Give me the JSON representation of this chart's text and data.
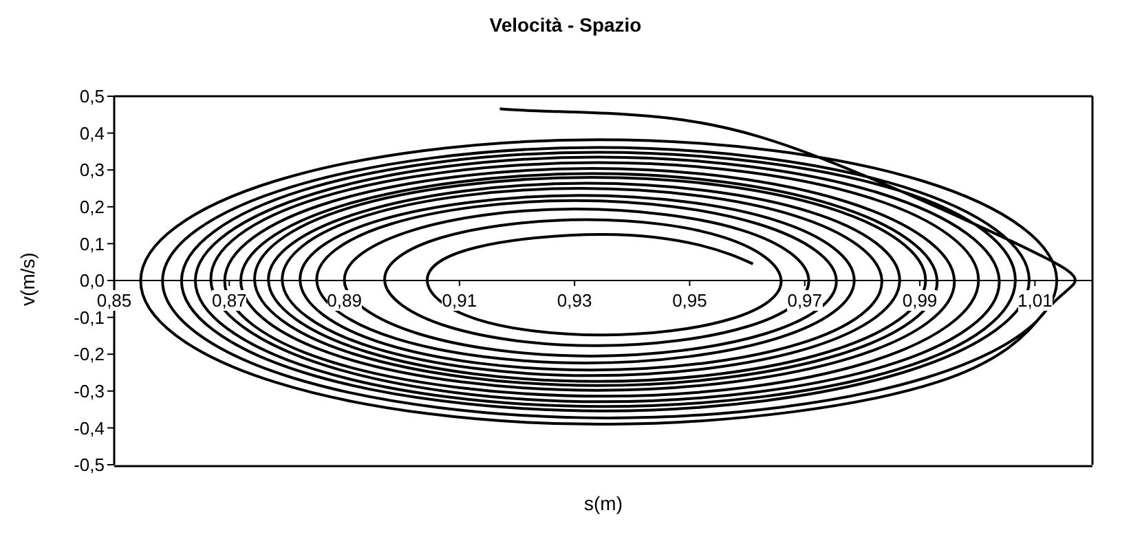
{
  "chart_data": {
    "type": "line",
    "title": "Velocità - Spazio",
    "xlabel": "s(m)",
    "ylabel": "v(m/s)",
    "color": "#000000",
    "marker": "none",
    "line_style": "solid",
    "xlim": [
      0.85,
      1.02
    ],
    "xticks": [
      {
        "value": 0.85,
        "label": "0,85"
      },
      {
        "value": 0.87,
        "label": "0,87"
      },
      {
        "value": 0.89,
        "label": "0,89"
      },
      {
        "value": 0.91,
        "label": "0,91"
      },
      {
        "value": 0.93,
        "label": "0,93"
      },
      {
        "value": 0.95,
        "label": "0,95"
      },
      {
        "value": 0.97,
        "label": "0,97"
      },
      {
        "value": 0.99,
        "label": "0,99"
      },
      {
        "value": 1.01,
        "label": "1,01"
      }
    ],
    "ylim": [
      -0.5,
      0.5
    ],
    "yticks": [
      {
        "value": 0.5,
        "label": "0,5"
      },
      {
        "value": 0.4,
        "label": "0,4"
      },
      {
        "value": 0.3,
        "label": "0,3"
      },
      {
        "value": 0.2,
        "label": "0,2"
      },
      {
        "value": 0.1,
        "label": "0,1"
      },
      {
        "value": 0,
        "label": "0,0"
      },
      {
        "value": -0.1,
        "label": "-0,1"
      },
      {
        "value": -0.2,
        "label": "-0,2"
      },
      {
        "value": -0.3,
        "label": "-0,3"
      },
      {
        "value": -0.4,
        "label": "-0,4"
      },
      {
        "value": -0.5,
        "label": "-0,5"
      }
    ],
    "x": [
      0.917,
      0.926,
      0.95,
      0.974,
      0.998,
      1.012,
      1.017,
      1.012,
      0.993,
      0.936,
      0.878,
      0.8546,
      0.878,
      0.934,
      0.9905,
      1.0138,
      0.991,
      0.936,
      0.881,
      0.8584,
      0.881,
      0.934,
      0.987,
      1.009,
      0.987,
      0.935,
      0.883,
      0.8617,
      0.883,
      0.934,
      0.986,
      1.0066,
      0.986,
      0.935,
      0.885,
      0.8641,
      0.885,
      0.934,
      0.983,
      1.0038,
      0.984,
      0.935,
      0.887,
      0.8668,
      0.886,
      0.934,
      0.981,
      1.0002,
      0.981,
      0.935,
      0.888,
      0.8692,
      0.888,
      0.933,
      0.977,
      0.996,
      0.978,
      0.934,
      0.89,
      0.872,
      0.89,
      0.933,
      0.975,
      0.993,
      0.976,
      0.934,
      0.892,
      0.8744,
      0.891,
      0.933,
      0.974,
      0.991,
      0.974,
      0.934,
      0.894,
      0.8768,
      0.893,
      0.932,
      0.971,
      0.9865,
      0.971,
      0.933,
      0.895,
      0.8792,
      0.894,
      0.931,
      0.968,
      0.9834,
      0.969,
      0.933,
      0.897,
      0.8823,
      0.896,
      0.931,
      0.965,
      0.9786,
      0.965,
      0.932,
      0.899,
      0.8852,
      0.898,
      0.93,
      0.962,
      0.9755,
      0.963,
      0.933,
      0.903,
      0.89,
      0.902,
      0.93,
      0.959,
      0.9707,
      0.96,
      0.934,
      0.908,
      0.897,
      0.907,
      0.932,
      0.956,
      0.9659,
      0.957,
      0.935,
      0.913,
      0.9044,
      0.913,
      0.935,
      0.952,
      0.961
    ],
    "values": [
      0.466,
      0.459,
      0.433,
      0.325,
      0.164,
      0.06,
      0,
      -0.08,
      -0.276,
      -0.39,
      -0.276,
      0,
      0.27,
      0.382,
      0.27,
      0,
      -0.264,
      -0.373,
      -0.264,
      0,
      0.255,
      0.361,
      0.255,
      0,
      -0.25,
      -0.354,
      -0.25,
      0,
      0.246,
      0.348,
      0.246,
      0,
      -0.242,
      -0.342,
      -0.242,
      0,
      0.237,
      0.335,
      0.237,
      0,
      -0.232,
      -0.329,
      -0.232,
      0,
      0.226,
      0.32,
      0.226,
      0,
      -0.222,
      -0.314,
      -0.222,
      0,
      0.215,
      0.304,
      0.215,
      0,
      -0.21,
      -0.298,
      -0.21,
      0,
      0.205,
      0.29,
      0.205,
      0,
      -0.201,
      -0.285,
      -0.201,
      0,
      0.198,
      0.28,
      0.198,
      0,
      -0.194,
      -0.274,
      -0.194,
      0,
      0.186,
      0.264,
      0.186,
      0,
      -0.182,
      -0.258,
      -0.182,
      0,
      0.177,
      0.25,
      0.177,
      0,
      -0.172,
      -0.243,
      -0.172,
      0,
      0.163,
      0.231,
      0.163,
      0,
      -0.158,
      -0.224,
      -0.158,
      0,
      0.153,
      0.217,
      0.153,
      0,
      -0.145,
      -0.205,
      -0.145,
      0,
      0.137,
      0.194,
      0.137,
      0,
      -0.125,
      -0.177,
      -0.125,
      0,
      0.117,
      0.165,
      0.117,
      0,
      -0.105,
      -0.148,
      -0.105,
      0,
      0.09,
      0.125,
      0.095,
      0.045
    ]
  }
}
